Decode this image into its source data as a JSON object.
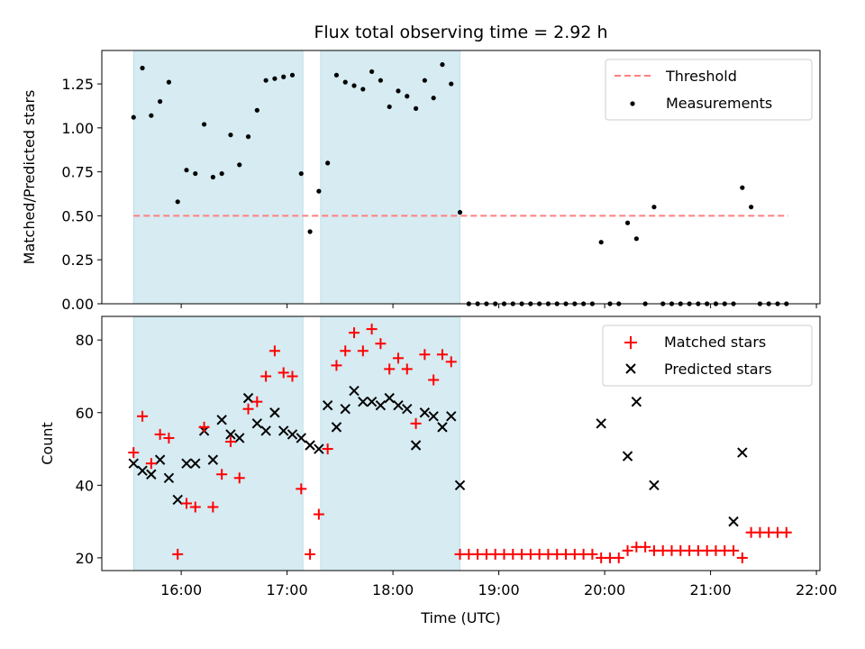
{
  "colors": {
    "band": "#add8e6",
    "threshold": "#ff7f7f",
    "measurement": "#000000",
    "matched": "#ff0000",
    "predicted": "#000000",
    "axis": "#000000",
    "legend_border": "#cccccc"
  },
  "chart_data": [
    {
      "type": "scatter",
      "title": "Flux total observing time = 2.92 h",
      "xlabel": "",
      "ylabel": "Matched/Predicted stars",
      "xlim": [
        "15:15",
        "22:02"
      ],
      "ylim": [
        0,
        1.44
      ],
      "xtick_labels": [],
      "ytick_values": [
        0,
        0.25,
        0.5,
        0.75,
        1.0,
        1.25
      ],
      "ytick_labels": [
        "0.00",
        "0.25",
        "0.50",
        "0.75",
        "1.00",
        "1.25"
      ],
      "legend_position": "upper right",
      "shaded_intervals": [
        [
          "15:33",
          "17:09"
        ],
        [
          "17:19",
          "18:38"
        ]
      ],
      "threshold": {
        "name": "Threshold",
        "y": 0.5,
        "x_start": "15:33",
        "x_end": "21:44"
      },
      "series": [
        {
          "name": "Measurements",
          "x": [
            "15:33",
            "15:38",
            "15:43",
            "15:48",
            "15:53",
            "15:58",
            "16:03",
            "16:08",
            "16:13",
            "16:18",
            "16:23",
            "16:28",
            "16:33",
            "16:38",
            "16:43",
            "16:48",
            "16:53",
            "16:58",
            "17:03",
            "17:08",
            "17:13",
            "17:18",
            "17:23",
            "17:28",
            "17:33",
            "17:38",
            "17:43",
            "17:48",
            "17:53",
            "17:58",
            "18:03",
            "18:08",
            "18:13",
            "18:18",
            "18:23",
            "18:28",
            "18:33",
            "18:38",
            "18:43",
            "18:48",
            "18:53",
            "18:58",
            "19:03",
            "19:08",
            "19:13",
            "19:18",
            "19:23",
            "19:28",
            "19:33",
            "19:38",
            "19:43",
            "19:48",
            "19:53",
            "19:58",
            "20:03",
            "20:08",
            "20:13",
            "20:18",
            "20:23",
            "20:28",
            "20:33",
            "20:38",
            "20:43",
            "20:48",
            "20:53",
            "20:58",
            "21:03",
            "21:08",
            "21:13",
            "21:18",
            "21:23",
            "21:28",
            "21:33",
            "21:38",
            "21:43"
          ],
          "y": [
            1.06,
            1.34,
            1.07,
            1.15,
            1.26,
            0.58,
            0.76,
            0.74,
            1.02,
            0.72,
            0.74,
            0.96,
            0.79,
            0.95,
            1.1,
            1.27,
            1.28,
            1.29,
            1.3,
            0.74,
            0.41,
            0.64,
            0.8,
            1.3,
            1.26,
            1.24,
            1.22,
            1.32,
            1.27,
            1.12,
            1.21,
            1.18,
            1.11,
            1.27,
            1.17,
            1.36,
            1.25,
            0.52,
            0,
            0,
            0,
            0,
            0,
            0,
            0,
            0,
            0,
            0,
            0,
            0,
            0,
            0,
            0,
            0.35,
            0,
            0,
            0.46,
            0.37,
            0,
            0.55,
            0,
            0,
            0,
            0,
            0,
            0,
            0,
            0,
            0,
            0.66,
            0.55,
            0,
            0,
            0,
            0
          ]
        }
      ]
    },
    {
      "type": "scatter",
      "title": "",
      "xlabel": "Time (UTC)",
      "ylabel": "Count",
      "xlim": [
        "15:15",
        "22:02"
      ],
      "ylim": [
        16.5,
        86.5
      ],
      "xtick_values": [
        "16:00",
        "17:00",
        "18:00",
        "19:00",
        "20:00",
        "21:00",
        "22:00"
      ],
      "xtick_labels": [
        "16:00",
        "17:00",
        "18:00",
        "19:00",
        "20:00",
        "21:00",
        "22:00"
      ],
      "ytick_values": [
        20,
        40,
        60,
        80
      ],
      "ytick_labels": [
        "20",
        "40",
        "60",
        "80"
      ],
      "legend_position": "upper right",
      "shaded_intervals": [
        [
          "15:33",
          "17:09"
        ],
        [
          "17:19",
          "18:38"
        ]
      ],
      "series": [
        {
          "name": "Matched stars",
          "marker": "+",
          "x": [
            "15:33",
            "15:38",
            "15:43",
            "15:48",
            "15:53",
            "15:58",
            "16:03",
            "16:08",
            "16:13",
            "16:18",
            "16:23",
            "16:28",
            "16:33",
            "16:38",
            "16:43",
            "16:48",
            "16:53",
            "16:58",
            "17:03",
            "17:08",
            "17:13",
            "17:18",
            "17:23",
            "17:28",
            "17:33",
            "17:38",
            "17:43",
            "17:48",
            "17:53",
            "17:58",
            "18:03",
            "18:08",
            "18:13",
            "18:18",
            "18:23",
            "18:28",
            "18:33",
            "18:38",
            "18:43",
            "18:48",
            "18:53",
            "18:58",
            "19:03",
            "19:08",
            "19:13",
            "19:18",
            "19:23",
            "19:28",
            "19:33",
            "19:38",
            "19:43",
            "19:48",
            "19:53",
            "19:58",
            "20:03",
            "20:08",
            "20:13",
            "20:18",
            "20:23",
            "20:28",
            "20:33",
            "20:38",
            "20:43",
            "20:48",
            "20:53",
            "20:58",
            "21:03",
            "21:08",
            "21:13",
            "21:18",
            "21:23",
            "21:28",
            "21:33",
            "21:38",
            "21:43"
          ],
          "y": [
            49,
            59,
            46,
            54,
            53,
            21,
            35,
            34,
            56,
            34,
            43,
            52,
            42,
            61,
            63,
            70,
            77,
            71,
            70,
            39,
            21,
            32,
            50,
            73,
            77,
            82,
            77,
            83,
            79,
            72,
            75,
            72,
            57,
            76,
            69,
            76,
            74,
            21,
            21,
            21,
            21,
            21,
            21,
            21,
            21,
            21,
            21,
            21,
            21,
            21,
            21,
            21,
            21,
            20,
            20,
            20,
            22,
            23,
            23,
            22,
            22,
            22,
            22,
            22,
            22,
            22,
            22,
            22,
            22,
            20,
            27,
            27,
            27,
            27,
            27
          ]
        },
        {
          "name": "Predicted stars",
          "marker": "x",
          "x": [
            "15:33",
            "15:38",
            "15:43",
            "15:48",
            "15:53",
            "15:58",
            "16:03",
            "16:08",
            "16:13",
            "16:18",
            "16:23",
            "16:28",
            "16:33",
            "16:38",
            "16:43",
            "16:48",
            "16:53",
            "16:58",
            "17:03",
            "17:08",
            "17:13",
            "17:18",
            "17:23",
            "17:28",
            "17:33",
            "17:38",
            "17:43",
            "17:48",
            "17:53",
            "17:58",
            "18:03",
            "18:08",
            "18:13",
            "18:18",
            "18:23",
            "18:28",
            "18:33",
            "18:38",
            "19:58",
            "20:13",
            "20:18",
            "20:28",
            "21:13",
            "21:18"
          ],
          "y": [
            46,
            44,
            43,
            47,
            42,
            36,
            46,
            46,
            55,
            47,
            58,
            54,
            53,
            64,
            57,
            55,
            60,
            55,
            54,
            53,
            51,
            50,
            62,
            56,
            61,
            66,
            63,
            63,
            62,
            64,
            62,
            61,
            51,
            60,
            59,
            56,
            59,
            40,
            57,
            48,
            63,
            40,
            30,
            49
          ]
        }
      ]
    }
  ]
}
